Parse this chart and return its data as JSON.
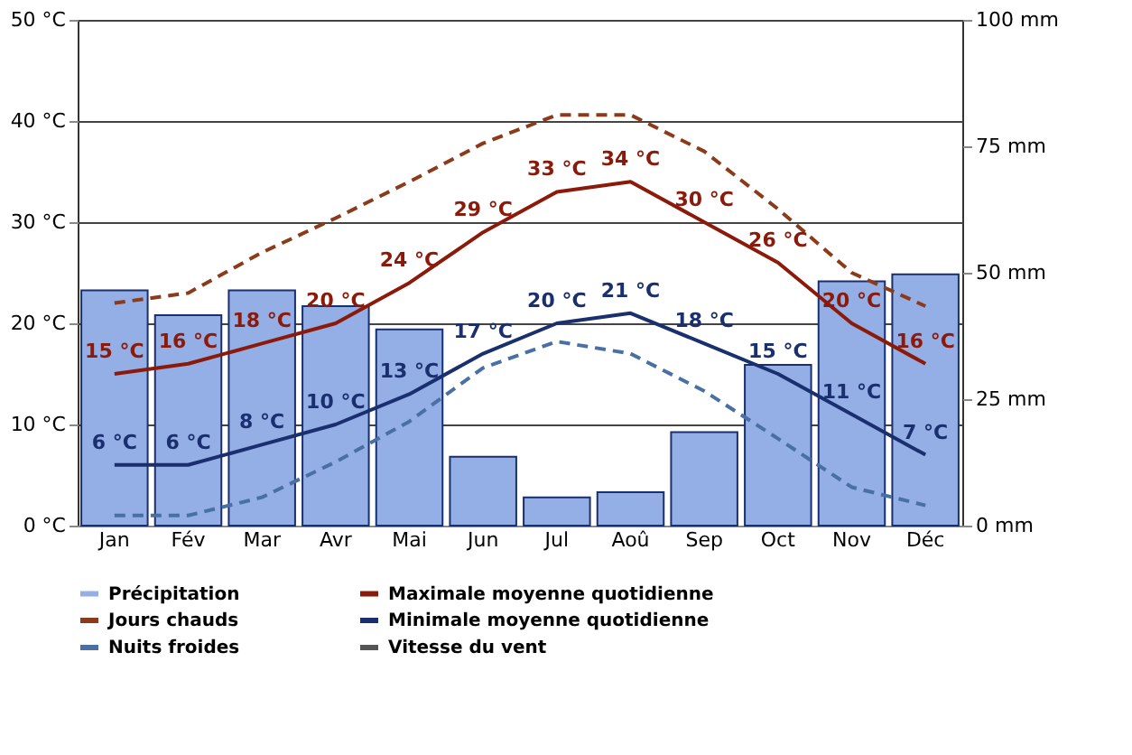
{
  "chart_data": {
    "type": "line",
    "categories": [
      "Jan",
      "Fév",
      "Mar",
      "Avr",
      "Mai",
      "Jun",
      "Jul",
      "Aoû",
      "Sep",
      "Oct",
      "Nov",
      "Déc"
    ],
    "series": [
      {
        "name": "Précipitation",
        "type": "bar",
        "axis": "y2",
        "color": "#94aee6",
        "values": [
          46.5,
          41.6,
          46.5,
          43.4,
          38.8,
          13.6,
          5.6,
          6.6,
          18.5,
          31.8,
          48.3,
          49.7
        ]
      },
      {
        "name": "Maximale moyenne quotidienne",
        "line_style": "solid",
        "color": "#8b1a0a",
        "values": [
          15,
          16,
          18,
          20,
          24,
          29,
          33,
          34,
          30,
          26,
          20,
          16
        ],
        "value_labels": [
          "15 °C",
          "16 °C",
          "18 °C",
          "20 °C",
          "24 °C",
          "29 °C",
          "33 °C",
          "34 °C",
          "30 °C",
          "26 °C",
          "20 °C",
          "16 °C"
        ]
      },
      {
        "name": "Jours chauds",
        "line_style": "dashed",
        "color": "#8b3a1a",
        "values": [
          22,
          23,
          27,
          30.4,
          34,
          37.8,
          40.6,
          40.6,
          37,
          31.3,
          25,
          21.7
        ]
      },
      {
        "name": "Minimale moyenne quotidienne",
        "line_style": "solid",
        "color": "#1a2f6e",
        "values": [
          6,
          6,
          8,
          10,
          13,
          17,
          20,
          21,
          18,
          15,
          11,
          7
        ],
        "value_labels": [
          "6 °C",
          "6 °C",
          "8 °C",
          "10 °C",
          "13 °C",
          "17 °C",
          "20 °C",
          "21 °C",
          "18 °C",
          "15 °C",
          "11 °C",
          "7 °C"
        ]
      },
      {
        "name": "Nuits froides",
        "line_style": "dashed",
        "color": "#4a6fa5",
        "values": [
          1,
          1,
          2.8,
          6.3,
          10.3,
          15.6,
          18.2,
          17,
          13.3,
          8.6,
          3.8,
          2
        ]
      },
      {
        "name": "Vitesse du vent",
        "line_style": "solid",
        "color": "#555555",
        "values": [
          null,
          null,
          null,
          null,
          null,
          null,
          null,
          null,
          null,
          null,
          null,
          null
        ]
      }
    ],
    "ylim": [
      0,
      50
    ],
    "yticks": [
      {
        "value": 0,
        "label": "0 °C"
      },
      {
        "value": 10,
        "label": "10 °C"
      },
      {
        "value": 20,
        "label": "20 °C"
      },
      {
        "value": 30,
        "label": "30 °C"
      },
      {
        "value": 40,
        "label": "40 °C"
      },
      {
        "value": 50,
        "label": "50 °C"
      }
    ],
    "y2lim": [
      0,
      100
    ],
    "y2ticks": [
      {
        "value": 0,
        "label": "0 mm"
      },
      {
        "value": 25,
        "label": "25 mm"
      },
      {
        "value": 50,
        "label": "50 mm"
      },
      {
        "value": 75,
        "label": "75 mm"
      },
      {
        "value": 100,
        "label": "100 mm"
      }
    ],
    "grid": "y",
    "legend": "bottom"
  }
}
